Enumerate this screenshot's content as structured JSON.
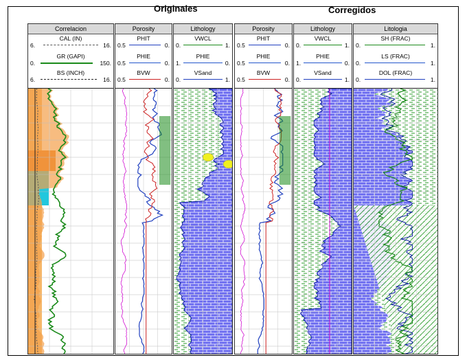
{
  "titles": {
    "originales": "Originales",
    "corregidos": "Corregidos"
  },
  "panels": [
    {
      "header": "Correlacion",
      "curves": [
        {
          "name": "CAL (IN)",
          "lo": "6.",
          "hi": "16.",
          "color": "#555555",
          "dash": true
        },
        {
          "name": "GR (GAPI)",
          "lo": "0.",
          "hi": "150.",
          "color": "#1a8a1a",
          "dash": false
        },
        {
          "name": "BS (INCH)",
          "lo": "6.",
          "hi": "16.",
          "color": "#222222",
          "dash": true
        }
      ]
    },
    {
      "header": "Porosity",
      "curves": [
        {
          "name": "PHIT",
          "lo": "0.5",
          "hi": "0.",
          "color": "#1f3fbf",
          "dash": false
        },
        {
          "name": "PHIE",
          "lo": "0.5",
          "hi": "0.",
          "color": "#2255cc",
          "dash": false
        },
        {
          "name": "BVW",
          "lo": "0.5",
          "hi": "0.",
          "color": "#cc2222",
          "dash": false
        }
      ]
    },
    {
      "header": "Lithology",
      "curves": [
        {
          "name": "VWCL",
          "lo": "0.",
          "hi": "1.",
          "color": "#1a8a1a",
          "dash": false
        },
        {
          "name": "PHIE",
          "lo": "1.",
          "hi": "0.",
          "color": "#2255cc",
          "dash": false
        },
        {
          "name": "VSand",
          "lo": "0.",
          "hi": "1.",
          "color": "#1f3fbf",
          "dash": false
        }
      ]
    },
    {
      "header": "Porosity",
      "curves": [
        {
          "name": "PHIT",
          "lo": "0.5",
          "hi": "0.",
          "color": "#1f3fbf",
          "dash": false
        },
        {
          "name": "PHIE",
          "lo": "0.5",
          "hi": "0.",
          "color": "#2255cc",
          "dash": false
        },
        {
          "name": "BVW",
          "lo": "0.5",
          "hi": "0.",
          "color": "#cc2222",
          "dash": false
        }
      ]
    },
    {
      "header": "Lithology",
      "curves": [
        {
          "name": "VWCL",
          "lo": "0.",
          "hi": "1.",
          "color": "#1a8a1a",
          "dash": false
        },
        {
          "name": "PHIE",
          "lo": "1.",
          "hi": "0.",
          "color": "#2255cc",
          "dash": false
        },
        {
          "name": "VSand",
          "lo": "0.",
          "hi": "1.",
          "color": "#1f3fbf",
          "dash": false
        }
      ]
    },
    {
      "header": "Litologia",
      "curves": [
        {
          "name": "SH (FRAC)",
          "lo": "0.",
          "hi": "1.",
          "color": "#1a8a1a",
          "dash": false
        },
        {
          "name": "LS (FRAC)",
          "lo": "0.",
          "hi": "1.",
          "color": "#2255cc",
          "dash": false
        },
        {
          "name": "DOL (FRAC)",
          "lo": "0.",
          "hi": "1.",
          "color": "#1f3fbf",
          "dash": false
        }
      ]
    }
  ]
}
